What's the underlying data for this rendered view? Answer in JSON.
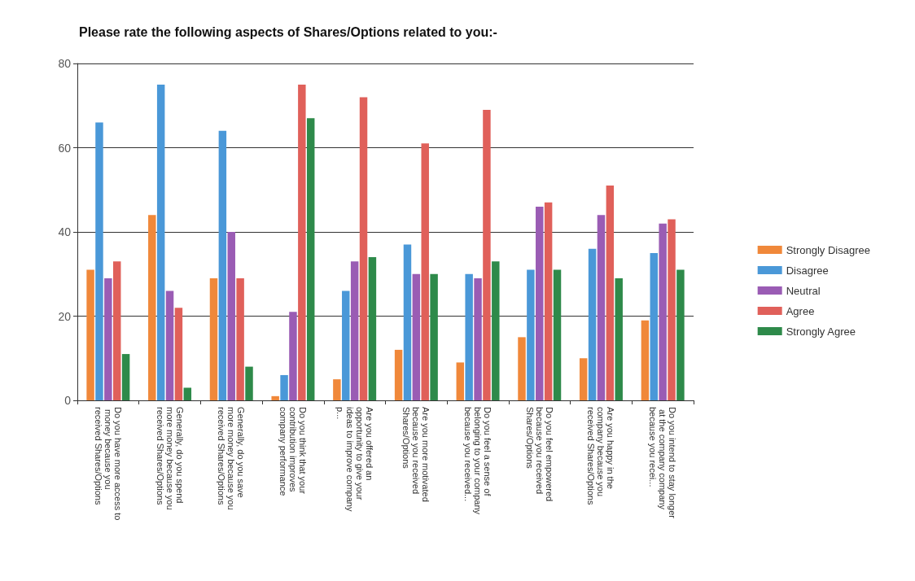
{
  "chart_data": {
    "type": "bar",
    "title": "Please rate the following aspects of Shares/Options related to you:-",
    "categories": [
      "Do you have more access to money because you received Shares/Options",
      "Generally, do you spend more money because you received Shares/Options",
      "Generally, do you save more money because you received Shares/Options",
      "Do you think that your contribution improves company performance",
      "Are you offered an opportunity to give your ideas to improve company p...",
      "Are you more motivated because you received Shares/Options",
      "Do you feel a sense of belonging to your company because you received...",
      "Do you feel empowered because you received Shares/Options",
      "Are you happy in the company because you received Shares/Options",
      "Do you intend to stay longer at the company company because you recei..."
    ],
    "series": [
      {
        "name": "Strongly Disagree",
        "color": "#f0883a",
        "values": [
          31,
          44,
          29,
          1,
          5,
          12,
          9,
          15,
          10,
          19
        ]
      },
      {
        "name": "Disagree",
        "color": "#4a98d8",
        "values": [
          66,
          75,
          64,
          6,
          26,
          37,
          30,
          31,
          36,
          35
        ]
      },
      {
        "name": "Neutral",
        "color": "#9a5cb4",
        "values": [
          29,
          26,
          40,
          21,
          33,
          30,
          29,
          46,
          44,
          42
        ]
      },
      {
        "name": "Agree",
        "color": "#e0605a",
        "values": [
          33,
          22,
          29,
          75,
          72,
          61,
          69,
          47,
          51,
          43
        ]
      },
      {
        "name": "Strongly Agree",
        "color": "#2e8a4a",
        "values": [
          11,
          3,
          8,
          67,
          34,
          30,
          33,
          31,
          29,
          31
        ]
      }
    ],
    "ylim": [
      0,
      80
    ],
    "yticks": [
      0,
      20,
      40,
      60,
      80
    ],
    "grid": "y",
    "legend": "right"
  }
}
